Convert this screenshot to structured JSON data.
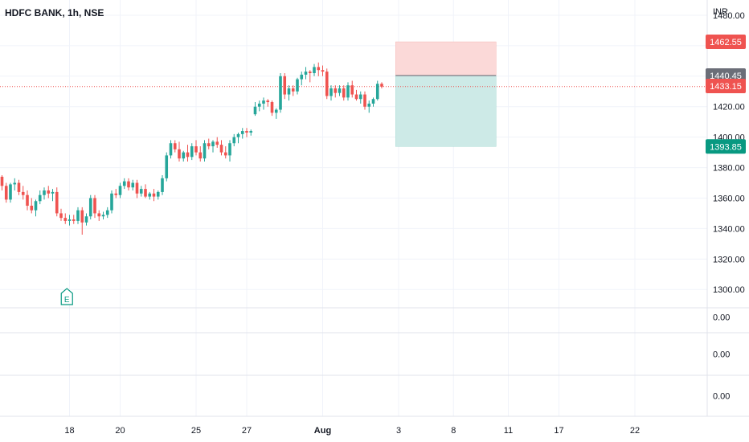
{
  "header": {
    "symbol_line": "HDFC BANK, 1h, NSE",
    "currency": "INR"
  },
  "colors": {
    "up": "#26a69a",
    "down": "#ef5350",
    "stop_zone": "#fbd9d8",
    "target_zone": "#cdeae7",
    "entry_badge": "#6b6e78",
    "stop_badge": "#ef5350",
    "target_badge": "#089981",
    "last_badge": "#ef5350",
    "grid": "#f0f3fa",
    "earnings": "#089981"
  },
  "earnings_marker": {
    "label": "E",
    "icon": "earnings-flag-icon"
  },
  "indicator_panes": [
    "0.00",
    "0.00",
    "0.00"
  ],
  "chart_data": {
    "type": "candlestick",
    "title": "HDFC BANK, 1h, NSE",
    "ylabel": "INR",
    "ylim": [
      1288,
      1490
    ],
    "y_ticks": [
      "1480.00",
      "1460.00",
      "1440.00",
      "1420.00",
      "1400.00",
      "1380.00",
      "1360.00",
      "1340.00",
      "1320.00",
      "1300.00"
    ],
    "x_ticks": [
      "18",
      "20",
      "25",
      "27",
      "Aug",
      "3",
      "8",
      "11",
      "17",
      "22"
    ],
    "x_domain": [
      0,
      146
    ],
    "x_tick_positions": [
      16,
      28,
      46,
      58,
      76,
      94,
      107,
      120,
      132,
      150
    ],
    "candles": [
      [
        1374,
        1375,
        1365,
        1368
      ],
      [
        1368,
        1370,
        1357,
        1359
      ],
      [
        1359,
        1370,
        1357,
        1369
      ],
      [
        1369,
        1373,
        1365,
        1370
      ],
      [
        1370,
        1372,
        1362,
        1364
      ],
      [
        1364,
        1368,
        1359,
        1362
      ],
      [
        1362,
        1365,
        1352,
        1355
      ],
      [
        1355,
        1360,
        1350,
        1352
      ],
      [
        1352,
        1359,
        1348,
        1358
      ],
      [
        1358,
        1365,
        1356,
        1362
      ],
      [
        1362,
        1367,
        1359,
        1365
      ],
      [
        1365,
        1368,
        1360,
        1363
      ],
      [
        1363,
        1366,
        1358,
        1364
      ],
      [
        1364,
        1367,
        1348,
        1350
      ],
      [
        1350,
        1353,
        1345,
        1347
      ],
      [
        1347,
        1350,
        1343,
        1345
      ],
      [
        1345,
        1349,
        1342,
        1346
      ],
      [
        1346,
        1349,
        1343,
        1345
      ],
      [
        1345,
        1354,
        1343,
        1352
      ],
      [
        1352,
        1354,
        1336,
        1344
      ],
      [
        1344,
        1350,
        1342,
        1348
      ],
      [
        1348,
        1362,
        1346,
        1360
      ],
      [
        1360,
        1362,
        1347,
        1350
      ],
      [
        1350,
        1352,
        1345,
        1348
      ],
      [
        1348,
        1351,
        1346,
        1349
      ],
      [
        1349,
        1354,
        1347,
        1352
      ],
      [
        1352,
        1365,
        1350,
        1363
      ],
      [
        1363,
        1366,
        1360,
        1362
      ],
      [
        1362,
        1370,
        1360,
        1368
      ],
      [
        1368,
        1373,
        1366,
        1371
      ],
      [
        1371,
        1373,
        1365,
        1367
      ],
      [
        1367,
        1372,
        1365,
        1370
      ],
      [
        1370,
        1372,
        1360,
        1363
      ],
      [
        1363,
        1368,
        1361,
        1366
      ],
      [
        1366,
        1369,
        1360,
        1361
      ],
      [
        1361,
        1364,
        1359,
        1363
      ],
      [
        1363,
        1366,
        1358,
        1361
      ],
      [
        1361,
        1365,
        1359,
        1364
      ],
      [
        1364,
        1375,
        1362,
        1373
      ],
      [
        1373,
        1390,
        1371,
        1388
      ],
      [
        1388,
        1398,
        1386,
        1396
      ],
      [
        1396,
        1398,
        1390,
        1392
      ],
      [
        1392,
        1397,
        1384,
        1386
      ],
      [
        1386,
        1391,
        1384,
        1390
      ],
      [
        1390,
        1395,
        1384,
        1387
      ],
      [
        1387,
        1396,
        1385,
        1394
      ],
      [
        1394,
        1398,
        1388,
        1390
      ],
      [
        1390,
        1394,
        1384,
        1386
      ],
      [
        1386,
        1398,
        1384,
        1396
      ],
      [
        1396,
        1399,
        1392,
        1394
      ],
      [
        1394,
        1398,
        1390,
        1397
      ],
      [
        1397,
        1400,
        1393,
        1395
      ],
      [
        1395,
        1398,
        1388,
        1390
      ],
      [
        1390,
        1394,
        1386,
        1388
      ],
      [
        1388,
        1398,
        1384,
        1396
      ],
      [
        1396,
        1402,
        1394,
        1400
      ],
      [
        1400,
        1403,
        1396,
        1402
      ],
      [
        1402,
        1406,
        1399,
        1404
      ],
      [
        1404,
        1406,
        1400,
        1403
      ],
      [
        1403,
        1405,
        1401,
        1404
      ],
      [
        1415,
        1423,
        1414,
        1420
      ],
      [
        1420,
        1424,
        1417,
        1422
      ],
      [
        1422,
        1426,
        1418,
        1424
      ],
      [
        1424,
        1425,
        1420,
        1423
      ],
      [
        1423,
        1424,
        1414,
        1416
      ],
      [
        1416,
        1419,
        1412,
        1418
      ],
      [
        1418,
        1442,
        1416,
        1440
      ],
      [
        1440,
        1442,
        1425,
        1428
      ],
      [
        1428,
        1434,
        1424,
        1432
      ],
      [
        1432,
        1434,
        1427,
        1430
      ],
      [
        1430,
        1439,
        1428,
        1438
      ],
      [
        1438,
        1443,
        1434,
        1441
      ],
      [
        1441,
        1446,
        1438,
        1443
      ],
      [
        1443,
        1444,
        1436,
        1442
      ],
      [
        1442,
        1448,
        1440,
        1446
      ],
      [
        1446,
        1449,
        1440,
        1444
      ],
      [
        1444,
        1447,
        1440,
        1443
      ],
      [
        1443,
        1445,
        1425,
        1427
      ],
      [
        1427,
        1434,
        1424,
        1432
      ],
      [
        1432,
        1434,
        1426,
        1429
      ],
      [
        1429,
        1434,
        1427,
        1432
      ],
      [
        1432,
        1434,
        1424,
        1426
      ],
      [
        1426,
        1436,
        1424,
        1434
      ],
      [
        1434,
        1437,
        1426,
        1428
      ],
      [
        1428,
        1431,
        1424,
        1425
      ],
      [
        1425,
        1430,
        1422,
        1428
      ],
      [
        1428,
        1430,
        1418,
        1420
      ],
      [
        1420,
        1424,
        1416,
        1422
      ],
      [
        1422,
        1426,
        1420,
        1425
      ],
      [
        1425,
        1437,
        1424,
        1435
      ],
      [
        1435,
        1436,
        1432,
        1433.15
      ]
    ],
    "position": {
      "entry": 1440.45,
      "stop": 1462.55,
      "target": 1393.85,
      "start_index": 91,
      "end_index": 115
    },
    "labels": {
      "last": "1433.15",
      "entry": "1440.45",
      "stop": "1462.55",
      "target": "1393.85"
    },
    "earnings_index": 15
  }
}
